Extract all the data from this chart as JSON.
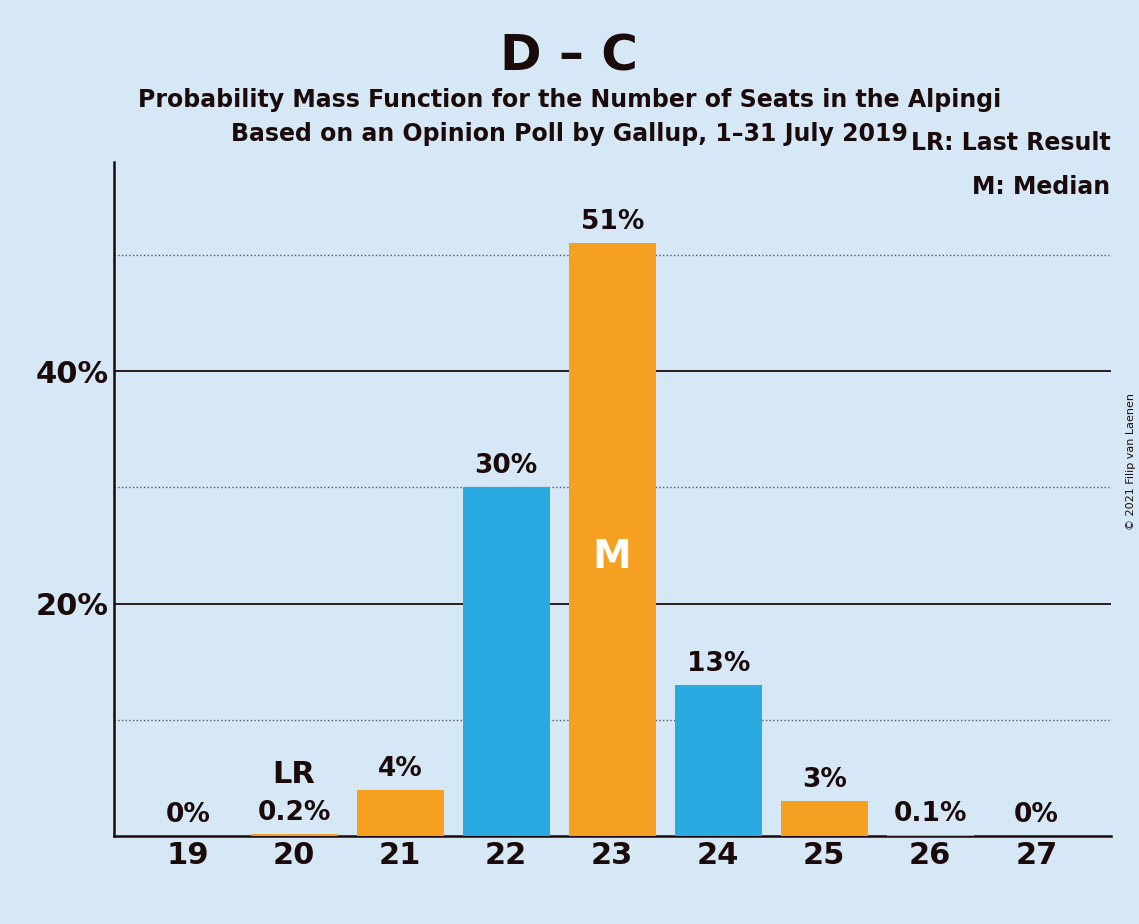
{
  "title": "D – C",
  "subtitle1": "Probability Mass Function for the Number of Seats in the Alpingi",
  "subtitle2": "Based on an Opinion Poll by Gallup, 1–31 July 2019",
  "copyright": "© 2021 Filip van Laenen",
  "seats": [
    19,
    20,
    21,
    22,
    23,
    24,
    25,
    26,
    27
  ],
  "values": [
    0.0,
    0.2,
    4.0,
    30.0,
    51.0,
    13.0,
    3.0,
    0.1,
    0.0
  ],
  "colors": [
    "#F5A020",
    "#F5A020",
    "#F5A020",
    "#29ABE2",
    "#F5A020",
    "#29ABE2",
    "#F5A020",
    "#F5A020",
    "#F5A020"
  ],
  "bar_labels": [
    "0%",
    "0.2%",
    "4%",
    "30%",
    "51%",
    "13%",
    "3%",
    "0.1%",
    "0%"
  ],
  "lr_bar_index": 1,
  "median_bar_index": 4,
  "lr_annotation": "LR",
  "median_annotation": "M",
  "legend_lr": "LR: Last Result",
  "legend_m": "M: Median",
  "solid_yticks": [
    20,
    40
  ],
  "dotted_yticks": [
    10,
    30,
    50
  ],
  "ylim": [
    0,
    58
  ],
  "background_color": "#d6e8f5",
  "title_fontsize": 36,
  "subtitle_fontsize": 17,
  "ytick_label_fontsize": 22,
  "xtick_label_fontsize": 22,
  "bar_label_fontsize": 19,
  "annotation_lr_fontsize": 22,
  "annotation_m_fontsize": 28,
  "legend_fontsize": 17,
  "copyright_fontsize": 8
}
